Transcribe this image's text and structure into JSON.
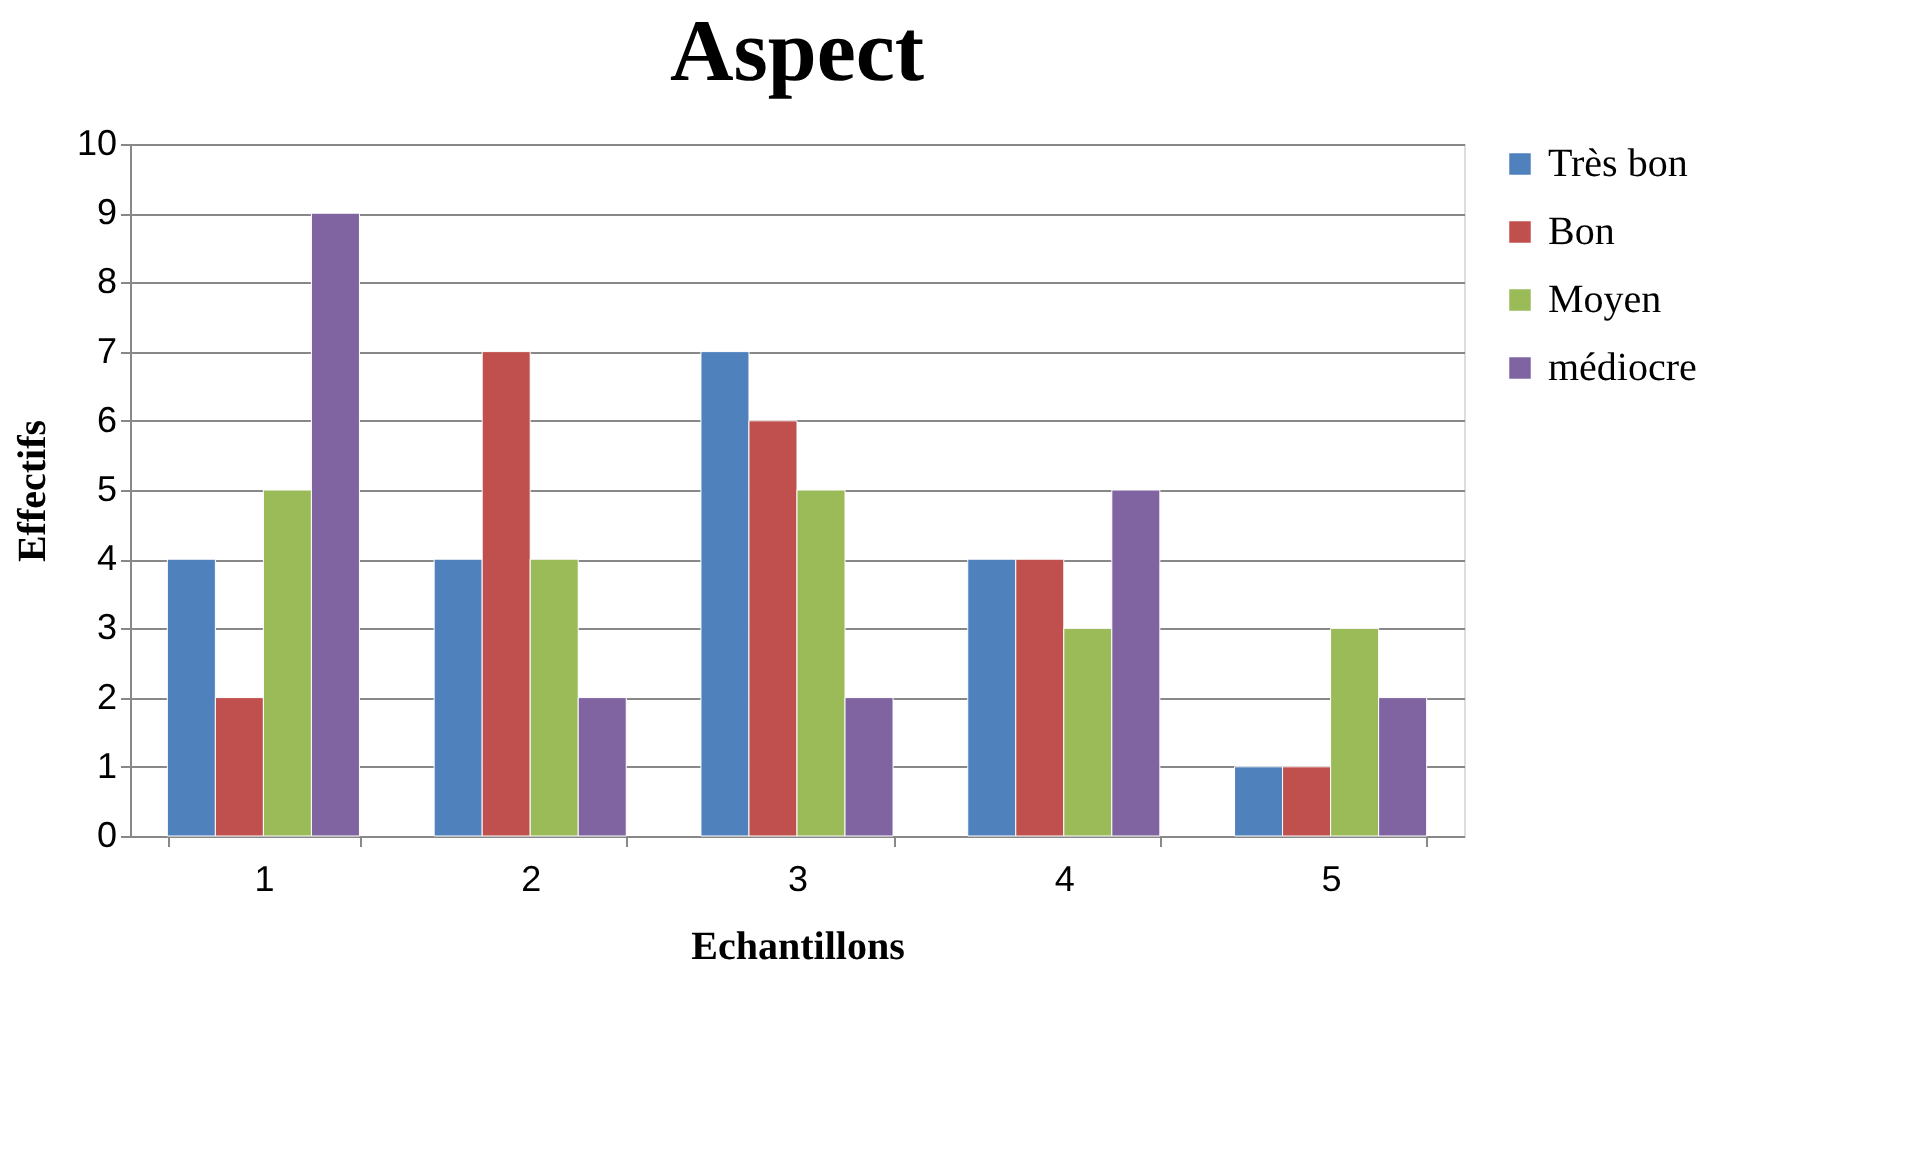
{
  "chart_data": {
    "type": "bar",
    "title": "Aspect",
    "xlabel": "Echantillons",
    "ylabel": "Effectifs",
    "categories": [
      "1",
      "2",
      "3",
      "4",
      "5"
    ],
    "series": [
      {
        "name": "Très bon",
        "color": "#4f81bd",
        "values": [
          4,
          4,
          7,
          4,
          1
        ]
      },
      {
        "name": "Bon",
        "color": "#c0504d",
        "values": [
          2,
          7,
          6,
          4,
          1
        ]
      },
      {
        "name": "Moyen",
        "color": "#9bbb59",
        "values": [
          5,
          4,
          5,
          3,
          3
        ]
      },
      {
        "name": "médiocre",
        "color": "#8064a2",
        "values": [
          9,
          2,
          2,
          5,
          2
        ]
      }
    ],
    "ylim": [
      0,
      10
    ],
    "yticks": [
      0,
      1,
      2,
      3,
      4,
      5,
      6,
      7,
      8,
      9,
      10
    ],
    "grid": "y",
    "legend": "right"
  }
}
